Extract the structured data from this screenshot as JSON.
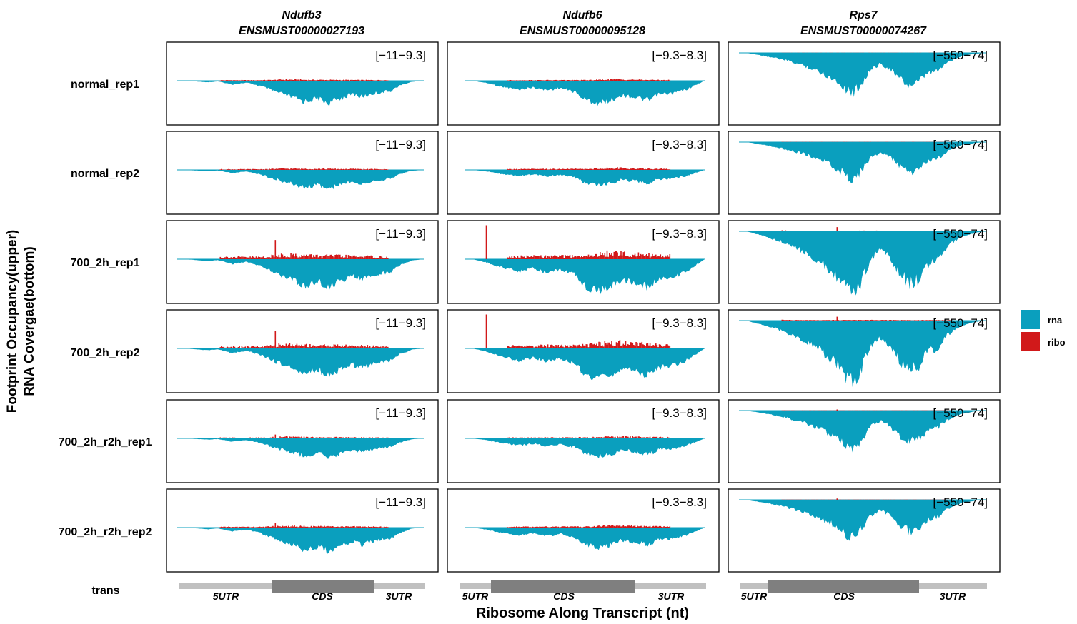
{
  "colors": {
    "rna": "#0a9fbe",
    "ribo": "#d1191a",
    "trans_utr": "#c0c0c0",
    "trans_cds": "#7f7f7f"
  },
  "chart_data": {
    "type": "area",
    "title": "",
    "ylabel_line1": "Footprint Occupancy(upper)",
    "ylabel_line2": "RNA Covergae(bottom)",
    "xlabel": "Ribosome Along Transcript (nt)",
    "legend": {
      "placement": "right",
      "entries": [
        {
          "key": "rna",
          "label": "rna"
        },
        {
          "key": "ribo",
          "label": "ribo"
        }
      ]
    },
    "transcripts": [
      {
        "gene": "Ndufb3",
        "transcript_id": "ENSMUST00000027193",
        "range_label": "[−11−9.3]",
        "ylim": [
          -11,
          9.3
        ],
        "structure": {
          "utr5": "5UTR",
          "cds": "CDS",
          "utr3": "3UTR"
        },
        "profile": {
          "rna_depth": [
            [
              0,
              0
            ],
            [
              0.1,
              0.6
            ],
            [
              0.14,
              0.3
            ],
            [
              0.2,
              1.5
            ],
            [
              0.26,
              0.8
            ],
            [
              0.32,
              2.2
            ],
            [
              0.38,
              4.5
            ],
            [
              0.44,
              6.4
            ],
            [
              0.5,
              8.5
            ],
            [
              0.56,
              7.2
            ],
            [
              0.6,
              9.3
            ],
            [
              0.64,
              7.6
            ],
            [
              0.7,
              5.4
            ],
            [
              0.74,
              6.6
            ],
            [
              0.8,
              5.0
            ],
            [
              0.86,
              4.2
            ],
            [
              0.9,
              2.0
            ],
            [
              0.95,
              0.4
            ],
            [
              1,
              0
            ]
          ],
          "ribo_height": [
            [
              0.32,
              0.5
            ],
            [
              0.38,
              0.8
            ],
            [
              0.4,
              1.1
            ],
            [
              0.5,
              0.9
            ],
            [
              0.6,
              0.8
            ],
            [
              0.7,
              0.7
            ],
            [
              0.8,
              0.6
            ],
            [
              0.9,
              0.4
            ]
          ]
        }
      },
      {
        "gene": "Ndufb6",
        "transcript_id": "ENSMUST00000095128",
        "range_label": "[−9.3−8.3]",
        "ylim": [
          -9.3,
          8.3
        ],
        "structure": {
          "utr5": "5UTR",
          "cds": "CDS",
          "utr3": "3UTR"
        },
        "profile": {
          "rna_depth": [
            [
              0,
              0
            ],
            [
              0.06,
              0.8
            ],
            [
              0.12,
              2.0
            ],
            [
              0.2,
              3.2
            ],
            [
              0.26,
              2.4
            ],
            [
              0.32,
              3.4
            ],
            [
              0.38,
              2.6
            ],
            [
              0.44,
              4.0
            ],
            [
              0.48,
              6.6
            ],
            [
              0.54,
              8.3
            ],
            [
              0.6,
              7.0
            ],
            [
              0.64,
              5.2
            ],
            [
              0.7,
              6.0
            ],
            [
              0.76,
              7.2
            ],
            [
              0.8,
              5.0
            ],
            [
              0.86,
              4.6
            ],
            [
              0.92,
              3.2
            ],
            [
              0.97,
              1.2
            ],
            [
              1,
              0
            ]
          ],
          "ribo_height": [
            [
              0.0,
              2.6
            ],
            [
              0.1,
              0.5
            ],
            [
              0.3,
              0.6
            ],
            [
              0.5,
              0.7
            ],
            [
              0.6,
              1.4
            ],
            [
              0.8,
              0.8
            ],
            [
              0.95,
              0.6
            ]
          ]
        }
      },
      {
        "gene": "Rps7",
        "transcript_id": "ENSMUST00000074267",
        "range_label": "[−550−74]",
        "ylim": [
          -550,
          74
        ],
        "structure": {
          "utr5": "5UTR",
          "cds": "CDS",
          "utr3": "3UTR"
        },
        "profile": {
          "rna_depth": [
            [
              0,
              0
            ],
            [
              0.08,
              40
            ],
            [
              0.16,
              90
            ],
            [
              0.24,
              160
            ],
            [
              0.32,
              260
            ],
            [
              0.38,
              360
            ],
            [
              0.42,
              470
            ],
            [
              0.45,
              510
            ],
            [
              0.48,
              400
            ],
            [
              0.52,
              220
            ],
            [
              0.56,
              140
            ],
            [
              0.6,
              200
            ],
            [
              0.64,
              330
            ],
            [
              0.68,
              420
            ],
            [
              0.72,
              380
            ],
            [
              0.76,
              260
            ],
            [
              0.8,
              230
            ],
            [
              0.84,
              120
            ],
            [
              0.9,
              40
            ],
            [
              0.96,
              10
            ],
            [
              1,
              0
            ]
          ],
          "ribo_height": [
            [
              0.0,
              30
            ],
            [
              0.2,
              6
            ],
            [
              0.5,
              8
            ],
            [
              0.8,
              6
            ]
          ]
        }
      }
    ],
    "samples": [
      {
        "label": "normal_rep1",
        "scales": [
          0.65,
          0.62,
          0.62
        ],
        "ribo_scales": [
          0.25,
          0.2,
          0.05
        ],
        "spike": [
          0,
          0,
          0
        ]
      },
      {
        "label": "normal_rep2",
        "scales": [
          0.55,
          0.42,
          0.58
        ],
        "ribo_scales": [
          0.3,
          0.3,
          0.12
        ],
        "spike": [
          0,
          0,
          0
        ]
      },
      {
        "label": "700_2h_rep1",
        "scales": [
          0.82,
          0.88,
          1.0
        ],
        "ribo_scales": [
          1.0,
          1.0,
          0.6
        ],
        "spike": [
          5.0,
          0,
          40
        ]
      },
      {
        "label": "700_2h_rep2",
        "scales": [
          0.78,
          0.85,
          0.95
        ],
        "ribo_scales": [
          0.9,
          0.95,
          0.6
        ],
        "spike": [
          4.6,
          0,
          36
        ]
      },
      {
        "label": "700_2h_r2h_rep1",
        "scales": [
          0.55,
          0.5,
          0.6
        ],
        "ribo_scales": [
          0.35,
          0.3,
          0.15
        ],
        "spike": [
          1.0,
          0,
          10
        ]
      },
      {
        "label": "700_2h_r2h_rep2",
        "scales": [
          0.68,
          0.55,
          0.6
        ],
        "ribo_scales": [
          0.35,
          0.3,
          0.15
        ],
        "spike": [
          1.2,
          0,
          12
        ]
      }
    ],
    "structure_row_label": "trans"
  }
}
